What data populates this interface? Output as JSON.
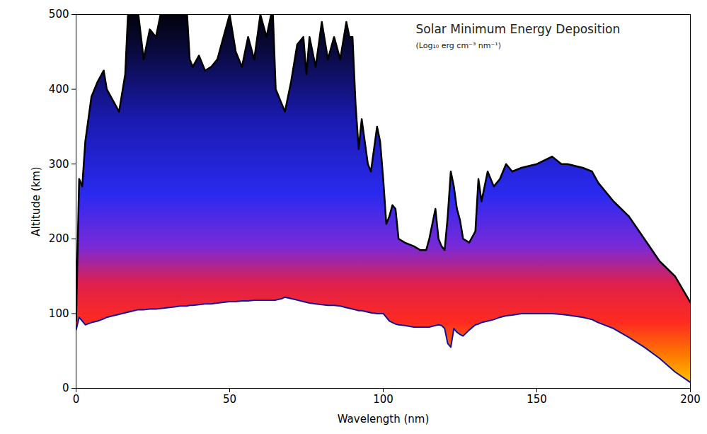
{
  "chart_data": {
    "type": "area",
    "title": "Solar Minimum Energy Deposition",
    "subtitle": "(Log₁₀ erg cm⁻³ nm⁻¹)",
    "x_label": "Wavelength (nm)",
    "y_label": "Altitude (km)",
    "xlim": [
      0,
      200
    ],
    "xticks": [
      0,
      50,
      100,
      150,
      200
    ],
    "ylim": [
      0,
      500
    ],
    "yticks": [
      0,
      100,
      200,
      300,
      400,
      500
    ],
    "x": [
      0,
      1,
      2,
      3,
      5,
      7,
      9,
      10,
      12,
      14,
      16,
      17,
      18,
      20,
      22,
      24,
      26,
      28,
      30,
      32,
      34,
      36,
      37,
      38,
      40,
      42,
      44,
      46,
      48,
      50,
      52,
      54,
      56,
      58,
      60,
      62,
      64,
      65,
      67,
      68,
      70,
      72,
      74,
      75,
      76,
      78,
      80,
      82,
      84,
      86,
      88,
      89,
      90,
      91,
      92,
      93,
      95,
      96,
      98,
      99,
      100,
      101,
      102,
      103,
      104,
      105,
      107,
      110,
      112,
      114,
      115,
      117,
      118,
      119,
      120,
      121,
      122,
      123,
      124,
      125,
      126,
      128,
      130,
      131,
      132,
      134,
      136,
      138,
      140,
      142,
      145,
      150,
      155,
      158,
      160,
      165,
      168,
      170,
      175,
      180,
      185,
      190,
      195,
      200
    ],
    "low": [
      78,
      95,
      90,
      85,
      88,
      90,
      93,
      95,
      97,
      99,
      101,
      102,
      103,
      105,
      105,
      106,
      106,
      107,
      108,
      109,
      110,
      110,
      111,
      111,
      112,
      113,
      113,
      114,
      115,
      116,
      116,
      117,
      117,
      118,
      118,
      118,
      118,
      118,
      120,
      122,
      120,
      118,
      116,
      115,
      114,
      113,
      112,
      111,
      111,
      110,
      108,
      107,
      106,
      105,
      104,
      104,
      102,
      101,
      100,
      100,
      100,
      95,
      90,
      88,
      86,
      85,
      84,
      82,
      82,
      82,
      82,
      84,
      85,
      84,
      80,
      60,
      55,
      80,
      75,
      72,
      70,
      78,
      85,
      86,
      88,
      90,
      92,
      95,
      97,
      98,
      100,
      100,
      100,
      99,
      98,
      95,
      92,
      88,
      80,
      68,
      55,
      40,
      22,
      8
    ],
    "high": [
      90,
      280,
      270,
      330,
      390,
      410,
      425,
      400,
      385,
      370,
      420,
      510,
      510,
      510,
      440,
      480,
      470,
      510,
      510,
      510,
      510,
      510,
      440,
      430,
      445,
      425,
      430,
      440,
      470,
      500,
      450,
      430,
      470,
      440,
      500,
      470,
      510,
      400,
      380,
      370,
      410,
      460,
      470,
      420,
      470,
      430,
      490,
      440,
      470,
      440,
      490,
      470,
      470,
      380,
      320,
      360,
      300,
      290,
      350,
      330,
      280,
      220,
      230,
      245,
      240,
      200,
      195,
      190,
      185,
      185,
      200,
      240,
      200,
      190,
      185,
      230,
      290,
      270,
      240,
      225,
      200,
      195,
      210,
      280,
      250,
      290,
      270,
      280,
      300,
      290,
      295,
      300,
      310,
      300,
      300,
      295,
      290,
      275,
      250,
      230,
      200,
      170,
      150,
      115
    ]
  }
}
